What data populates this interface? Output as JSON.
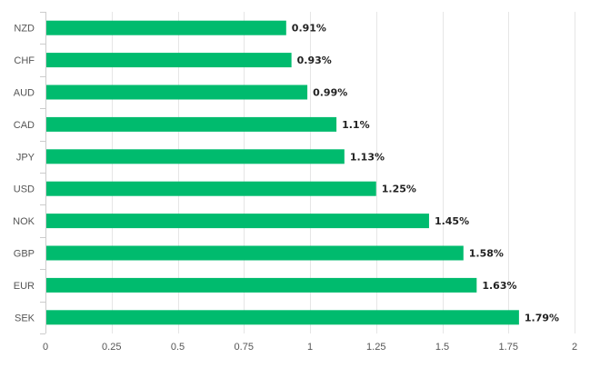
{
  "chart_data": {
    "type": "bar",
    "orientation": "horizontal",
    "categories": [
      "NZD",
      "CHF",
      "AUD",
      "CAD",
      "JPY",
      "USD",
      "NOK",
      "GBP",
      "EUR",
      "SEK"
    ],
    "values": [
      0.91,
      0.93,
      0.99,
      1.1,
      1.13,
      1.25,
      1.45,
      1.58,
      1.63,
      1.79
    ],
    "data_labels": [
      "0.91%",
      "0.93%",
      "0.99%",
      "1.1%",
      "1.13%",
      "1.25%",
      "1.45%",
      "1.58%",
      "1.63%",
      "1.79%"
    ],
    "x_ticks": [
      "0",
      "0.25",
      "0.5",
      "0.75",
      "1",
      "1.25",
      "1.5",
      "1.75",
      "2"
    ],
    "xlim": [
      0,
      2
    ],
    "grid": true,
    "legend": false,
    "bar_color": "#00bb6e",
    "grid_color": "#e6e6e6",
    "axis_color": "#cccccc"
  }
}
